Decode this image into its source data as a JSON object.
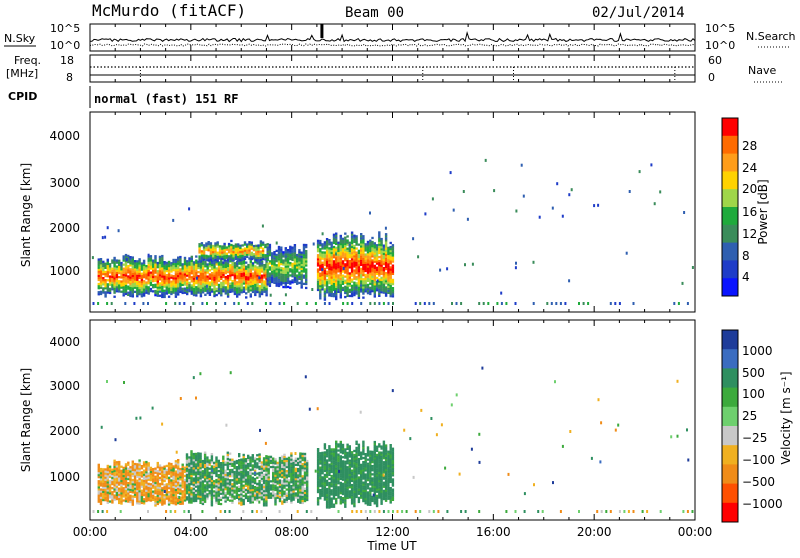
{
  "header": {
    "station": "McMurdo (fitACF)",
    "beam": "Beam 00",
    "date": "02/Jul/2014"
  },
  "panels": {
    "nsky": {
      "left_label": "N.Sky",
      "right_label": "N.Search",
      "left_ticks": [
        "10^5",
        "10^0"
      ],
      "right_ticks": [
        "10^5",
        "10^0"
      ]
    },
    "freq": {
      "left_label_1": "Freq.",
      "left_label_2": "[MHz]",
      "right_label": "Nave",
      "left_ticks": [
        "18",
        "8"
      ],
      "right_ticks": [
        "60",
        "0"
      ]
    },
    "cpid": {
      "label": "CPID",
      "program": "normal (fast) 151 RF"
    }
  },
  "power_panel": {
    "ylabel": "Slant Range [km]",
    "yticks": [
      "4000",
      "3000",
      "2000",
      "1000"
    ],
    "colorbar_title": "Power [dB]",
    "colorbar_ticks": [
      "28",
      "24",
      "20",
      "16",
      "12",
      "8",
      "4"
    ],
    "colorbar_colors": [
      "#ff0000",
      "#ff6b00",
      "#ff9d1a",
      "#ffd200",
      "#9fd64a",
      "#1faa3c",
      "#3a8c5a",
      "#2f5fb0",
      "#1e3cc8",
      "#0a14ff"
    ]
  },
  "velocity_panel": {
    "ylabel": "Slant Range [km]",
    "yticks": [
      "4000",
      "3000",
      "2000",
      "1000"
    ],
    "colorbar_title": "Velocity [m s⁻¹]",
    "colorbar_ticks": [
      "1000",
      "500",
      "100",
      "25",
      "−25",
      "−100",
      "−500",
      "−1000"
    ],
    "colorbar_colors": [
      "#1e3c9a",
      "#3a6cc0",
      "#2f8f60",
      "#3caa3c",
      "#6ed06e",
      "#c8c8c8",
      "#f0b020",
      "#f08c18",
      "#ff5000",
      "#ff0000"
    ]
  },
  "xaxis": {
    "label": "Time UT",
    "ticks": [
      "00:00",
      "04:00",
      "08:00",
      "12:00",
      "16:00",
      "20:00",
      "00:00"
    ]
  },
  "chart_data": {
    "type": "heatmap",
    "title": "McMurdo (fitACF)",
    "subtitle": "Beam 00",
    "date": "02/Jul/2014",
    "xlabel": "Time UT",
    "ylabel": "Slant Range [km]",
    "xlim": [
      "00:00",
      "24:00"
    ],
    "ylim": [
      200,
      4600
    ],
    "panels": [
      {
        "parameter": "Power [dB]",
        "clim": [
          0,
          30
        ],
        "echo_regions": [
          {
            "t_start": 0.3,
            "t_end": 7.0,
            "r_min": 500,
            "r_max": 1450,
            "peak": 28
          },
          {
            "t_start": 4.3,
            "t_end": 7.0,
            "r_min": 1300,
            "r_max": 1750,
            "peak": 24
          },
          {
            "t_start": 7.0,
            "t_end": 8.6,
            "r_min": 700,
            "r_max": 1700,
            "peak": 16
          },
          {
            "t_start": 9.0,
            "t_end": 12.0,
            "r_min": 450,
            "r_max": 1950,
            "peak": 30
          }
        ]
      },
      {
        "parameter": "Velocity [m s⁻¹]",
        "clim": [
          -1000,
          1000
        ],
        "echo_regions": [
          {
            "t_start": 0.3,
            "t_end": 3.8,
            "r_min": 500,
            "r_max": 1500,
            "typical_velocity": -100
          },
          {
            "t_start": 3.8,
            "t_end": 8.6,
            "r_min": 500,
            "r_max": 1700,
            "typical_velocity": 100
          },
          {
            "t_start": 9.0,
            "t_end": 12.0,
            "r_min": 450,
            "r_max": 1950,
            "typical_velocity": 200
          }
        ]
      }
    ]
  }
}
